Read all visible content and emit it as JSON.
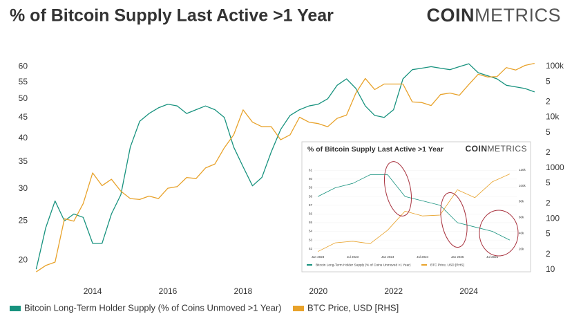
{
  "chart_data": [
    {
      "type": "line",
      "title": "% of Bitcoin Supply Last Active >1 Year",
      "logo": {
        "bold": "COIN",
        "light": "METRICS"
      },
      "x": [
        2012.5,
        2012.75,
        2013,
        2013.25,
        2013.5,
        2013.75,
        2014,
        2014.25,
        2014.5,
        2014.75,
        2015,
        2015.25,
        2015.5,
        2015.75,
        2016,
        2016.25,
        2016.5,
        2016.75,
        2017,
        2017.25,
        2017.5,
        2017.75,
        2018,
        2018.25,
        2018.5,
        2018.75,
        2019,
        2019.25,
        2019.5,
        2019.75,
        2020,
        2020.25,
        2020.5,
        2020.75,
        2021,
        2021.25,
        2021.5,
        2021.75,
        2022,
        2022.25,
        2022.5,
        2022.75,
        2023,
        2023.25,
        2023.5,
        2023.75,
        2024,
        2024.25,
        2024.5,
        2024.75,
        2025,
        2025.25,
        2025.5,
        2025.75
      ],
      "xlim": [
        2012.4,
        2025.9
      ],
      "xticks": [
        2014,
        2016,
        2018,
        2020,
        2022,
        2024
      ],
      "ylim": [
        18,
        63
      ],
      "ylog": true,
      "yticks": [
        20,
        25,
        30,
        35,
        40,
        45,
        50,
        55,
        60
      ],
      "y2lim": [
        6.6,
        146000
      ],
      "y2log": true,
      "y2ticks": [
        {
          "value": 100000,
          "label": "100k"
        },
        {
          "value": 50000,
          "label": "5"
        },
        {
          "value": 20000,
          "label": "2"
        },
        {
          "value": 10000,
          "label": "10k"
        },
        {
          "value": 5000,
          "label": "5"
        },
        {
          "value": 2000,
          "label": "2"
        },
        1000,
        {
          "value": 500,
          "label": "5"
        },
        {
          "value": 200,
          "label": "2"
        },
        100,
        {
          "value": 50,
          "label": "5"
        },
        {
          "value": 20,
          "label": "2"
        },
        10
      ],
      "grid": false,
      "series": [
        {
          "name": "Bitcoin Long-Term Holder Supply (% of Coins Unmoved >1 Year)",
          "color": "#17927e",
          "values": [
            19,
            24,
            28,
            25,
            26,
            25.5,
            22,
            22,
            26,
            29,
            38,
            44,
            46,
            47.5,
            48.5,
            48,
            46,
            47,
            48,
            47,
            45,
            38,
            34,
            30.5,
            32,
            37,
            42,
            45.5,
            47,
            48,
            48.5,
            50,
            54,
            56,
            53,
            48,
            45.5,
            45,
            47,
            56,
            59,
            59.5,
            60,
            59.5,
            59,
            60,
            61,
            58,
            57,
            56,
            54,
            53.5,
            53,
            52
          ]
        },
        {
          "name": "BTC Price, USD [RHS]",
          "color": "#e8a22a",
          "axis": "y2",
          "values": [
            9,
            12,
            14,
            100,
            90,
            200,
            800,
            450,
            600,
            350,
            250,
            240,
            280,
            250,
            400,
            430,
            650,
            620,
            1000,
            1200,
            2500,
            4500,
            14000,
            8000,
            6500,
            6500,
            3600,
            4500,
            10000,
            8000,
            7500,
            6500,
            9500,
            11000,
            30000,
            58000,
            35000,
            45000,
            45000,
            45000,
            20000,
            19500,
            17000,
            28000,
            30000,
            27000,
            44000,
            70000,
            62000,
            63000,
            95000,
            85000,
            105000,
            115000
          ]
        }
      ]
    },
    {
      "type": "line",
      "title": "% of Bitcoin Supply Last Active >1 Year",
      "logo": {
        "bold": "COIN",
        "light": "METRICS"
      },
      "x": [
        2023,
        2023.25,
        2023.5,
        2023.75,
        2024,
        2024.25,
        2024.5,
        2024.75,
        2025,
        2025.25,
        2025.5,
        2025.75
      ],
      "xlim": [
        2022.95,
        2025.85
      ],
      "xticks": [
        {
          "value": 2023,
          "label": "Jan 2023"
        },
        {
          "value": 2023.5,
          "label": "Jul 2023"
        },
        {
          "value": 2024,
          "label": "Jan 2024"
        },
        {
          "value": 2024.5,
          "label": "Jul 2024"
        },
        {
          "value": 2025,
          "label": "Jan 2025"
        },
        {
          "value": 2025.5,
          "label": "Jul 2025"
        }
      ],
      "ylim": [
        51.5,
        61.5
      ],
      "yticks": [
        52,
        53,
        54,
        55,
        56,
        57,
        58,
        59,
        60,
        61
      ],
      "y2lim": [
        15000,
        125000
      ],
      "y2ticks": [
        {
          "value": 20000,
          "label": "20k"
        },
        {
          "value": 40000,
          "label": "40k"
        },
        {
          "value": 60000,
          "label": "60k"
        },
        {
          "value": 80000,
          "label": "80k"
        },
        {
          "value": 100000,
          "label": "100k"
        },
        {
          "value": 120000,
          "label": "120k"
        }
      ],
      "grid": true,
      "series": [
        {
          "name": "Bitcoin Long-Term Holder Supply (% of Coins Unmoved >1 Year)",
          "color": "#17927e",
          "values": [
            58,
            59,
            59.5,
            60.5,
            60.5,
            58,
            57.5,
            57,
            55,
            54.5,
            54,
            53
          ]
        },
        {
          "name": "BTC Price, USD [RHS]",
          "color": "#e8a22a",
          "axis": "y2",
          "values": [
            17000,
            28000,
            30000,
            27000,
            44000,
            68000,
            62000,
            63000,
            95000,
            85000,
            105000,
            115000
          ]
        }
      ]
    }
  ]
}
